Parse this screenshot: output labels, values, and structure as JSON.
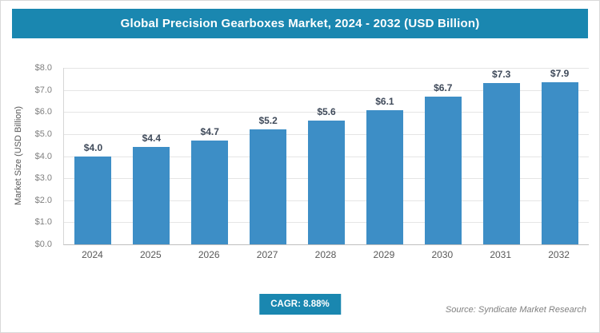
{
  "header": {
    "title": "Global Precision Gearboxes Market, 2024 - 2032 (USD Billion)"
  },
  "footer": {
    "cagr_label": "CAGR: 8.88%",
    "source": "Source: Syndicate Market Research"
  },
  "chart_data": {
    "type": "bar",
    "categories": [
      "2024",
      "2025",
      "2026",
      "2027",
      "2028",
      "2029",
      "2030",
      "2031",
      "2032"
    ],
    "values": [
      4.0,
      4.4,
      4.7,
      5.2,
      5.6,
      6.1,
      6.7,
      7.3,
      7.9
    ],
    "title": "Global Precision Gearboxes Market, 2024 - 2032 (USD Billion)",
    "xlabel": "",
    "ylabel": "Market Size (USD Billion)",
    "ylim": [
      0,
      8
    ],
    "ytick_step": 1.0,
    "value_prefix": "$",
    "grid": true,
    "legend": "none",
    "bar_color": "#3d8ec6",
    "accent_color": "#1a87b0",
    "value_label_color": "#3f4a5a"
  }
}
